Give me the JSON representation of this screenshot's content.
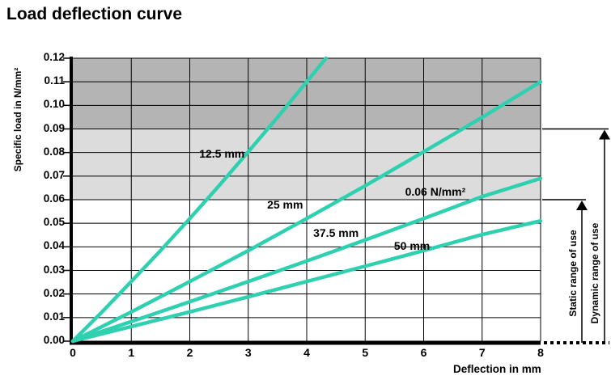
{
  "page_title": "Load deflection curve",
  "chart_data": {
    "type": "line",
    "title": "Load deflection curve",
    "xlabel": "Deflection in mm",
    "ylabel": "Specific load in N/mm²",
    "xlim": [
      0,
      8
    ],
    "ylim": [
      0,
      0.12
    ],
    "x_ticks": [
      0,
      1,
      2,
      3,
      4,
      5,
      6,
      7,
      8
    ],
    "y_tick_labels": [
      "0.00",
      "0.01",
      "0.02",
      "0.03",
      "0.04",
      "0.05",
      "0.06",
      "0.07",
      "0.08",
      "0.09",
      "0.10",
      "0.11",
      "0.12"
    ],
    "grid": true,
    "legend_position": "inline-curve-labels",
    "colors": {
      "curve": "#2fd0b0",
      "band_dark": "#b4b4b4",
      "band_light": "#dcdcdc",
      "axis": "#000000"
    },
    "bands": [
      {
        "from": 0.09,
        "to": 0.12,
        "color": "#b4b4b4"
      },
      {
        "from": 0.06,
        "to": 0.09,
        "color": "#dcdcdc"
      }
    ],
    "series": [
      {
        "name": "12.5 mm",
        "x": [
          0,
          0.5,
          1,
          1.5,
          2,
          2.5,
          3,
          3.5,
          4,
          4.33
        ],
        "y": [
          0,
          0.0124,
          0.0253,
          0.0384,
          0.052,
          0.0659,
          0.0803,
          0.0949,
          0.11,
          0.12
        ]
      },
      {
        "name": "25 mm",
        "x": [
          0,
          1,
          2,
          3,
          4,
          5,
          6,
          7,
          8
        ],
        "y": [
          0,
          0.0124,
          0.0253,
          0.0384,
          0.052,
          0.0659,
          0.0803,
          0.0949,
          0.11
        ]
      },
      {
        "name": "37.5 mm",
        "x": [
          0,
          1,
          2,
          3,
          4,
          5,
          6,
          7,
          8
        ],
        "y": [
          0,
          0.0083,
          0.0167,
          0.0253,
          0.034,
          0.0429,
          0.052,
          0.0613,
          0.069
        ]
      },
      {
        "name": "50 mm",
        "x": [
          0,
          1,
          2,
          3,
          4,
          5,
          6,
          7,
          8
        ],
        "y": [
          0,
          0.0062,
          0.0124,
          0.0188,
          0.0253,
          0.0318,
          0.0384,
          0.0452,
          0.051
        ]
      }
    ],
    "annotations": {
      "curve_labels": [
        {
          "text": "12.5 mm",
          "x": 2.55,
          "y": 0.0795
        },
        {
          "text": "25 mm",
          "x": 3.63,
          "y": 0.058
        },
        {
          "text": "37.5 mm",
          "x": 4.5,
          "y": 0.046
        },
        {
          "text": "50 mm",
          "x": 5.8,
          "y": 0.0405
        },
        {
          "text": "0.06 N/mm²",
          "x": 6.2,
          "y": 0.0635
        }
      ],
      "static_label": "Static range of use",
      "static_level": 0.06,
      "dynamic_label": "Dynamic range of use",
      "dynamic_level": 0.09
    }
  }
}
